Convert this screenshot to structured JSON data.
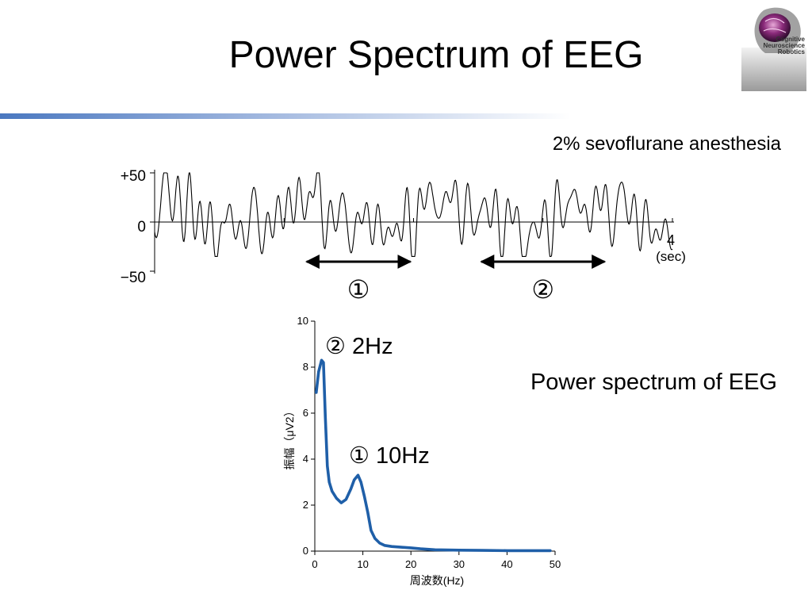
{
  "slide": {
    "title": "Power Spectrum of EEG",
    "subtitle": "2% sevoflurane anesthesia",
    "spectrum_caption": "Power spectrum of EEG"
  },
  "logo": {
    "lines": [
      "Cognitive",
      "Neuroscience",
      "Robotics"
    ]
  },
  "colors": {
    "accent_rule": "#4a78c0",
    "spectrum_line": "#1f5fa8",
    "trace": "#000000"
  },
  "chart_data": [
    {
      "type": "line",
      "y_tick_labels": [
        "+50",
        "0",
        "−50"
      ],
      "ylim": [
        -50,
        50
      ],
      "x_end_label": "4",
      "x_unit_label": "(sec)",
      "xlim": [
        0,
        4
      ],
      "annotations": [
        {
          "label": "①",
          "x_start": 1.15,
          "x_end": 2.0
        },
        {
          "label": "②",
          "x_start": 2.5,
          "x_end": 3.5
        }
      ]
    },
    {
      "type": "line",
      "xlabel": "周波数(Hz)",
      "ylabel": "振幅（μV2）",
      "xlim": [
        0,
        50
      ],
      "ylim": [
        0,
        10
      ],
      "x_ticks": [
        0,
        10,
        20,
        30,
        40,
        50
      ],
      "y_ticks": [
        0,
        2,
        4,
        6,
        8,
        10
      ],
      "series": [
        {
          "x": [
            0.3,
            0.8,
            1.4,
            1.8,
            2.2,
            2.6,
            3.0,
            3.6,
            4.5,
            5.5,
            6.5,
            7.5,
            8.2,
            9.0,
            9.6,
            10.3,
            11.0,
            11.7,
            12.5,
            13.5,
            14.5,
            16,
            18,
            20,
            22,
            25,
            30,
            35,
            40,
            45,
            49
          ],
          "y": [
            6.9,
            7.8,
            8.3,
            8.2,
            5.8,
            3.7,
            3.0,
            2.6,
            2.3,
            2.1,
            2.25,
            2.7,
            3.1,
            3.3,
            3.0,
            2.4,
            1.7,
            0.9,
            0.55,
            0.35,
            0.25,
            0.2,
            0.17,
            0.14,
            0.1,
            0.06,
            0.04,
            0.03,
            0.02,
            0.02,
            0.02
          ]
        }
      ],
      "annotations": [
        {
          "label": "② 2Hz"
        },
        {
          "label": "① 10Hz"
        }
      ]
    }
  ]
}
